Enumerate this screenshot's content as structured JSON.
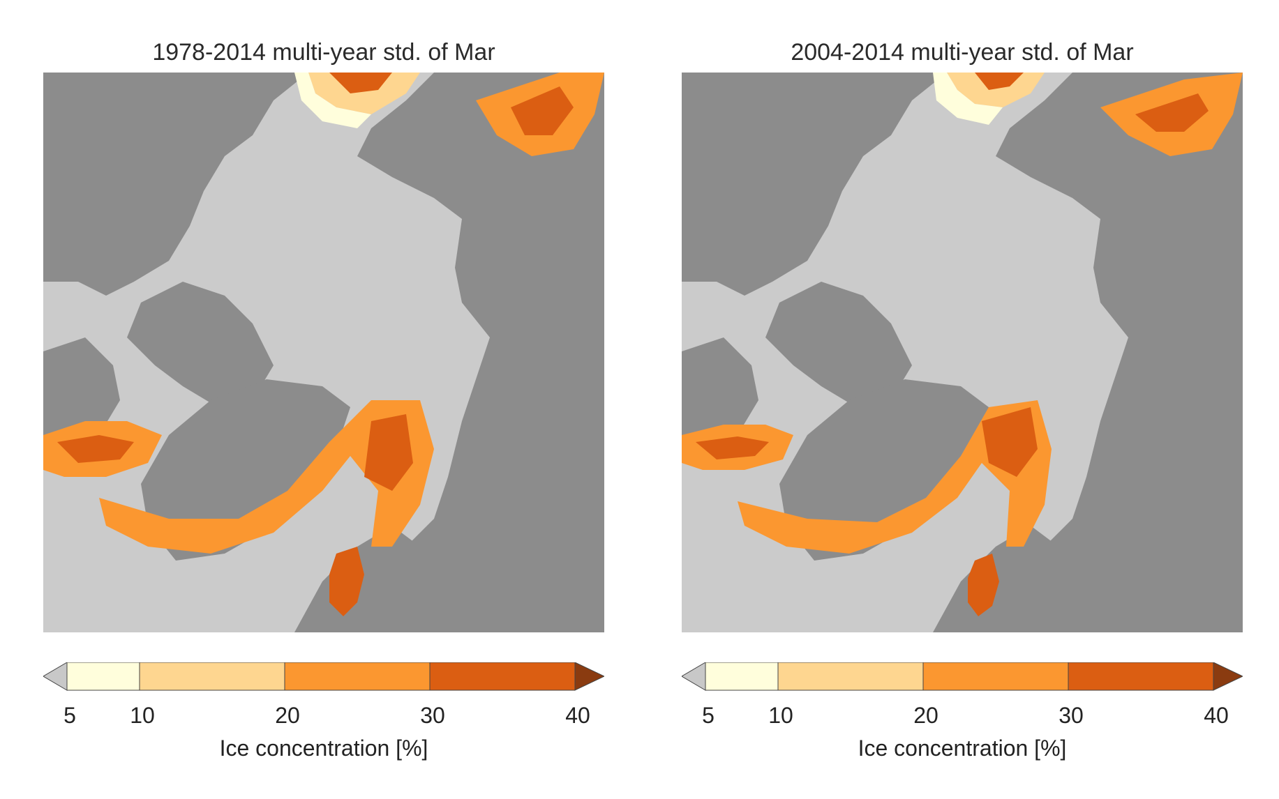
{
  "colors": {
    "ocean_ice": "#cbcbcb",
    "land": "#8c8c8c",
    "under": "#c8c8c8",
    "over": "#8a3b10",
    "classes": [
      "#fffedc",
      "#fed690",
      "#fb9730",
      "#db5e12"
    ]
  },
  "panels": [
    {
      "title": "1978-2014 multi-year std. of Mar"
    },
    {
      "title": "2004-2014 multi-year std. of Mar"
    }
  ],
  "colorbar": {
    "ticks": [
      "5",
      "10",
      "20",
      "30",
      "40"
    ],
    "label": "Ice concentration [%]",
    "bounds": [
      5,
      10,
      20,
      30,
      40
    ],
    "extend": "both"
  }
}
